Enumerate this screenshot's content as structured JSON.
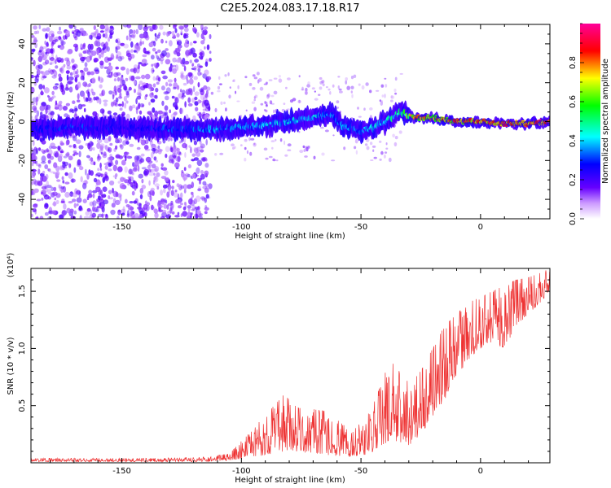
{
  "figure": {
    "title": "C2E5.2024.083.17.18.R17"
  },
  "chart_data": [
    {
      "type": "heatmap",
      "xlabel": "Height of straight line (km)",
      "ylabel": "Frequency (Hz)",
      "xlim": [
        -188,
        29
      ],
      "ylim": [
        -50,
        50
      ],
      "xticks": [
        -150,
        -100,
        -50,
        0
      ],
      "yticks": [
        -40,
        -20,
        0,
        20,
        40
      ],
      "colorbar": {
        "label": "Normalized spectral amplitude",
        "range": [
          0,
          1
        ],
        "ticks": [
          0.0,
          0.2,
          0.4,
          0.6,
          0.8
        ],
        "colors": [
          "#ffffff",
          "#6600ff",
          "#0000ff",
          "#00ffff",
          "#00ff00",
          "#ffff00",
          "#ff0000",
          "#ff00aa"
        ]
      },
      "trace": [
        [
          -188,
          -4,
          0.25
        ],
        [
          -170,
          -3,
          0.3
        ],
        [
          -150,
          -3,
          0.25
        ],
        [
          -130,
          -4,
          0.3
        ],
        [
          -110,
          -4,
          0.35
        ],
        [
          -100,
          -3,
          0.35
        ],
        [
          -90,
          -2,
          0.4
        ],
        [
          -80,
          0,
          0.4
        ],
        [
          -70,
          2,
          0.4
        ],
        [
          -62,
          4,
          0.35
        ],
        [
          -58,
          -2,
          0.35
        ],
        [
          -50,
          -5,
          0.35
        ],
        [
          -45,
          -3,
          0.4
        ],
        [
          -40,
          0,
          0.45
        ],
        [
          -33,
          5,
          0.45
        ],
        [
          -28,
          2,
          0.75
        ],
        [
          -20,
          2,
          0.75
        ],
        [
          -10,
          0,
          0.8
        ],
        [
          0,
          0,
          0.85
        ],
        [
          10,
          -1,
          0.85
        ],
        [
          20,
          -1,
          0.85
        ],
        [
          29,
          0,
          0.9
        ]
      ]
    },
    {
      "type": "line",
      "xlabel": "Height of straight line (km)",
      "ylabel": "SNR (10 * v/v)",
      "y_multiplier": "(x10⁴)",
      "xlim": [
        -188,
        29
      ],
      "ylim": [
        0,
        1.7
      ],
      "xticks": [
        -150,
        -100,
        -50,
        0
      ],
      "yticks": [
        0.5,
        1.0,
        1.5
      ],
      "series": [
        {
          "color": "#ee3333",
          "envelope": [
            [
              -188,
              0.01,
              0.04
            ],
            [
              -140,
              0.01,
              0.04
            ],
            [
              -115,
              0.01,
              0.05
            ],
            [
              -105,
              0.02,
              0.08
            ],
            [
              -95,
              0.05,
              0.3
            ],
            [
              -82,
              0.1,
              0.6
            ],
            [
              -78,
              0.1,
              0.5
            ],
            [
              -65,
              0.07,
              0.45
            ],
            [
              -55,
              0.05,
              0.3
            ],
            [
              -45,
              0.08,
              0.5
            ],
            [
              -38,
              0.2,
              0.9
            ],
            [
              -30,
              0.15,
              0.7
            ],
            [
              -25,
              0.25,
              0.8
            ],
            [
              -20,
              0.4,
              1.0
            ],
            [
              -15,
              0.55,
              1.2
            ],
            [
              -10,
              0.75,
              1.3
            ],
            [
              -5,
              0.9,
              1.4
            ],
            [
              0,
              1.0,
              1.45
            ],
            [
              5,
              1.05,
              1.5
            ],
            [
              10,
              1.0,
              1.55
            ],
            [
              15,
              1.2,
              1.6
            ],
            [
              20,
              1.3,
              1.62
            ],
            [
              25,
              1.4,
              1.66
            ],
            [
              29,
              1.5,
              1.7
            ]
          ]
        }
      ]
    }
  ]
}
